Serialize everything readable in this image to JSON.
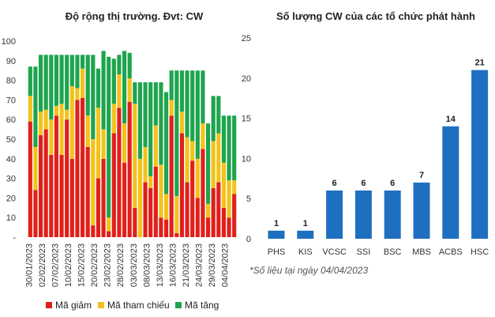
{
  "chart_data": [
    {
      "type": "bar",
      "stacked": true,
      "title": "Độ rộng thị trường. Đvt: CW",
      "ylim": [
        0,
        100
      ],
      "yticks": [
        "-",
        "10",
        "20",
        "30",
        "40",
        "50",
        "60",
        "70",
        "80",
        "90",
        "100"
      ],
      "legend": "bottom",
      "date_labels": [
        "30/01/2023",
        "02/02/2023",
        "07/02/2023",
        "10/02/2023",
        "15/02/2023",
        "20/02/2023",
        "23/02/2023",
        "28/02/2023",
        "03/03/2023",
        "08/03/2023",
        "13/03/2023",
        "16/03/2023",
        "21/03/2023",
        "24/03/2023",
        "29/03/2023",
        "04/04/2023"
      ],
      "series": [
        {
          "name": "Mã giảm",
          "color": "#e0201b",
          "values": [
            59,
            24,
            52,
            55,
            42,
            62,
            42,
            60,
            40,
            70,
            71,
            46,
            6,
            30,
            40,
            3,
            53,
            66,
            38,
            69,
            15,
            0,
            28,
            25,
            36,
            10,
            9,
            62,
            2,
            53,
            28,
            39,
            20,
            45,
            10,
            25,
            28,
            15,
            10,
            22
          ]
        },
        {
          "name": "Mã tham chiếu",
          "color": "#f3c21b",
          "values": [
            13,
            22,
            12,
            10,
            18,
            5,
            26,
            5,
            37,
            6,
            15,
            16,
            44,
            36,
            15,
            7,
            15,
            17,
            20,
            12,
            53,
            40,
            18,
            6,
            21,
            27,
            13,
            8,
            19,
            11,
            23,
            10,
            20,
            13,
            7,
            24,
            25,
            23,
            19,
            7
          ]
        },
        {
          "name": "Mã tăng",
          "color": "#1ea44e",
          "values": [
            15,
            41,
            29,
            28,
            33,
            26,
            25,
            28,
            16,
            17,
            7,
            31,
            43,
            20,
            40,
            82,
            23,
            10,
            37,
            13,
            11,
            39,
            33,
            48,
            22,
            42,
            52,
            15,
            64,
            21,
            34,
            36,
            45,
            27,
            41,
            23,
            19,
            24,
            33,
            33
          ]
        }
      ]
    },
    {
      "type": "bar",
      "title": "Số lượng CW của các tổ chức phát hành",
      "ylim": [
        0,
        25
      ],
      "yticks": [
        "0",
        "5",
        "10",
        "15",
        "20",
        "25"
      ],
      "categories": [
        "PHS",
        "KIS",
        "VCSC",
        "SSI",
        "BSC",
        "MBS",
        "ACBS",
        "HSC"
      ],
      "values": [
        1,
        1,
        6,
        6,
        6,
        7,
        14,
        21
      ],
      "color": "#1f6fc0",
      "annotation": "*Số liệu tại ngày 04/04/2023"
    }
  ]
}
